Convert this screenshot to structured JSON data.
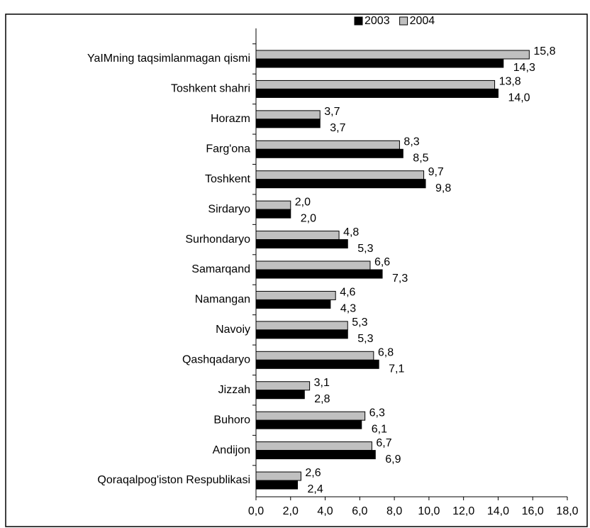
{
  "chart_data": {
    "type": "bar",
    "orientation": "horizontal",
    "categories": [
      "YaIMning taqsimlanmagan qismi",
      "Toshkent shahri",
      "Horazm",
      "Farg'ona",
      "Toshkent",
      "Sirdaryo",
      "Surhondaryo",
      "Samarqand",
      "Namangan",
      "Navoiy",
      "Qashqadaryo",
      "Jizzah",
      "Buhoro",
      "Andijon",
      "Qoraqalpog'iston Respublikasi"
    ],
    "series": [
      {
        "name": "2003",
        "color": "#000000",
        "values": [
          14.3,
          14.0,
          3.7,
          8.5,
          9.8,
          2.0,
          5.3,
          7.3,
          4.3,
          5.3,
          7.1,
          2.8,
          6.1,
          6.9,
          2.4
        ],
        "value_labels": [
          "14,3",
          "14,0",
          "3,7",
          "8,5",
          "9,8",
          "2,0",
          "5,3",
          "7,3",
          "4,3",
          "5,3",
          "7,1",
          "2,8",
          "6,1",
          "6,9",
          "2,4"
        ]
      },
      {
        "name": "2004",
        "color": "#c0c0c0",
        "values": [
          15.8,
          13.8,
          3.7,
          8.3,
          9.7,
          2.0,
          4.8,
          6.6,
          4.6,
          5.3,
          6.8,
          3.1,
          6.3,
          6.7,
          2.6
        ],
        "value_labels": [
          "15,8",
          "13,8",
          "3,7",
          "8,3",
          "9,7",
          "2,0",
          "4,8",
          "6,6",
          "4,6",
          "5,3",
          "6,8",
          "3,1",
          "6,3",
          "6,7",
          "2,6"
        ]
      }
    ],
    "xlim": [
      0,
      18
    ],
    "xticks": [
      {
        "value": 0,
        "label": "0,0"
      },
      {
        "value": 2,
        "label": "2,0"
      },
      {
        "value": 4,
        "label": "4,0"
      },
      {
        "value": 6,
        "label": "6,0"
      },
      {
        "value": 8,
        "label": "8,0"
      },
      {
        "value": 10,
        "label": "10,0"
      },
      {
        "value": 12,
        "label": "12,0"
      },
      {
        "value": 14,
        "label": "14,0"
      },
      {
        "value": 16,
        "label": "16,0"
      },
      {
        "value": 18,
        "label": "18,0"
      }
    ],
    "legend": "top",
    "grid": false
  }
}
